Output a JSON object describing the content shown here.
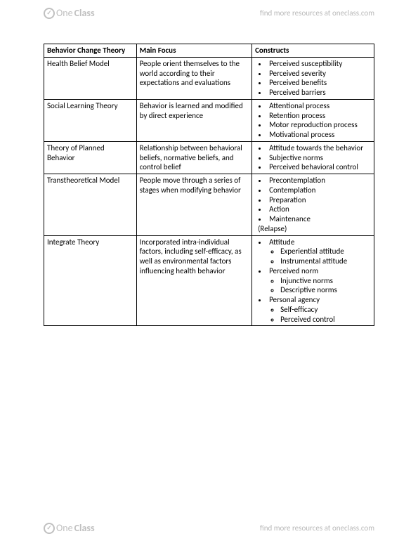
{
  "brand": {
    "one": "One",
    "class": "Class",
    "icon_glyph": "✓"
  },
  "header_link": "find more resources at oneclass.com",
  "footer_link": "find more resources at oneclass.com",
  "table": {
    "headers": [
      "Behavior Change Theory",
      "Main Focus",
      "Constructs"
    ],
    "rows": [
      {
        "theory": "Health Belief Model",
        "focus": "People orient themselves to the world according to their expectations and evaluations",
        "constructs": {
          "items": [
            {
              "label": "Perceived susceptibility"
            },
            {
              "label": "Perceived severity"
            },
            {
              "label": "Perceived benefits"
            },
            {
              "label": "Perceived barriers"
            }
          ]
        }
      },
      {
        "theory": "Social Learning Theory",
        "focus": "Behavior is learned and modified by direct experience",
        "constructs": {
          "items": [
            {
              "label": "Attentional process"
            },
            {
              "label": "Retention process"
            },
            {
              "label": "Motor reproduction process"
            },
            {
              "label": "Motivational process"
            }
          ]
        }
      },
      {
        "theory": "Theory of Planned Behavior",
        "focus": "Relationship between behavioral beliefs, normative beliefs, and control belief",
        "constructs": {
          "items": [
            {
              "label": "Attitude towards the behavior"
            },
            {
              "label": "Subjective norms"
            },
            {
              "label": "Perceived behavioral control"
            }
          ]
        }
      },
      {
        "theory": "Transtheoretical Model",
        "focus": "People move through a series of stages when modifying behavior",
        "constructs": {
          "items": [
            {
              "label": "Precontemplation"
            },
            {
              "label": "Contemplation"
            },
            {
              "label": "Preparation"
            },
            {
              "label": "Action"
            },
            {
              "label": "Maintenance"
            }
          ],
          "trailing": "(Relapse)"
        }
      },
      {
        "theory": "Integrate Theory",
        "focus": "Incorporated intra-individual factors, including self-efficacy, as well as environmental factors influencing health behavior",
        "constructs": {
          "items": [
            {
              "label": "Attitude",
              "sub": [
                "Experiential attitude",
                "Instrumental attitude"
              ]
            },
            {
              "label": "Perceived norm",
              "sub": [
                "Injunctive norms",
                "Descriptive norms"
              ]
            },
            {
              "label": "Personal agency",
              "sub": [
                "Self-efficacy",
                "Perceived control"
              ]
            }
          ]
        }
      }
    ]
  }
}
